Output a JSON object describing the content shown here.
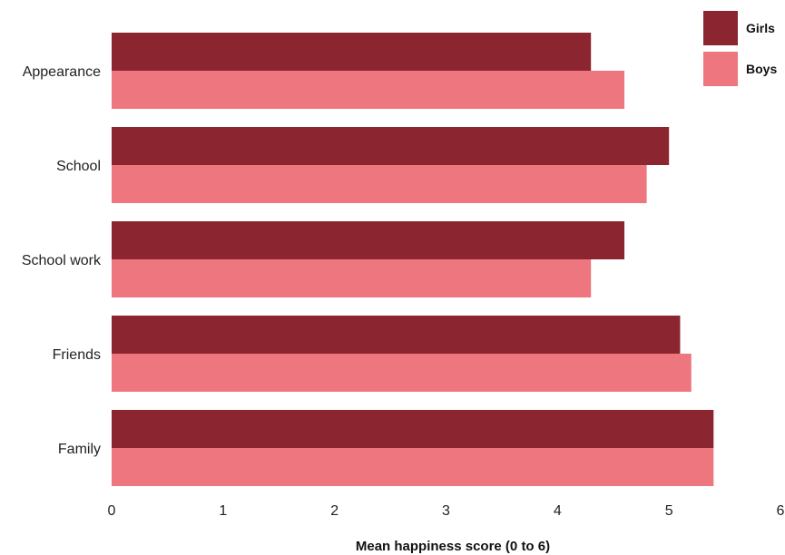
{
  "chart_data": {
    "type": "bar",
    "orientation": "horizontal",
    "categories": [
      "Appearance",
      "School",
      "School work",
      "Friends",
      "Family"
    ],
    "series": [
      {
        "name": "Girls",
        "color": "#8b2630",
        "values": [
          4.3,
          5.0,
          4.6,
          5.1,
          5.4
        ]
      },
      {
        "name": "Boys",
        "color": "#ee767e",
        "values": [
          4.6,
          4.8,
          4.3,
          5.2,
          5.4
        ]
      }
    ],
    "xlabel": "Mean happiness score (0 to 6)",
    "ylabel": "",
    "xlim": [
      0,
      6
    ],
    "xticks": [
      "0",
      "1",
      "2",
      "3",
      "4",
      "5",
      "6"
    ],
    "grid": false,
    "legend_position": "top-right"
  }
}
